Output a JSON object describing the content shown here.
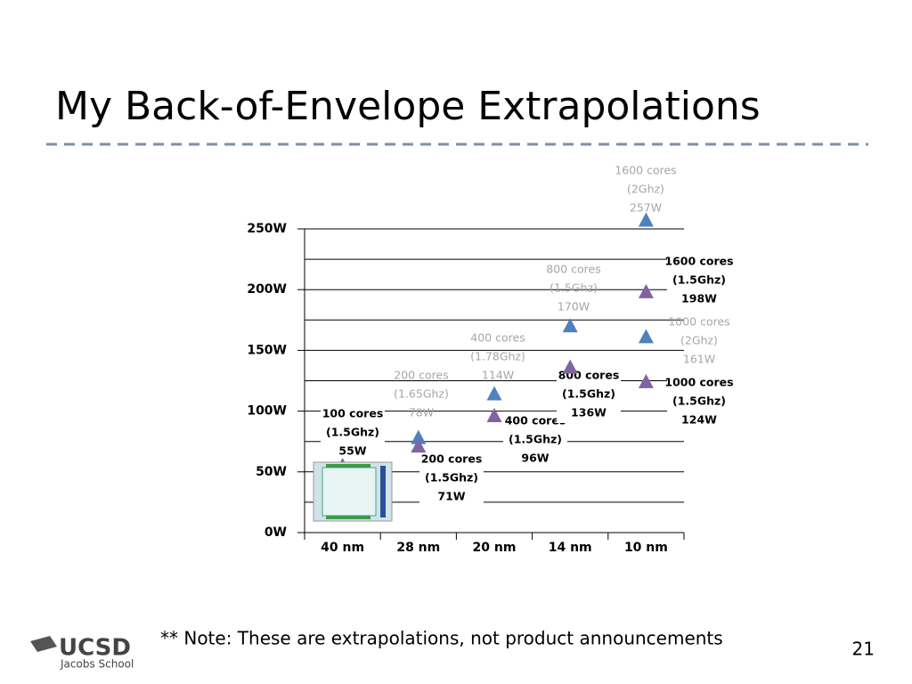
{
  "slide": {
    "title": "My Back-of-Envelope Extrapolations",
    "note": "** Note: These are extrapolations, not product announcements",
    "page_number": "21",
    "logo_text": "UCSD",
    "logo_subtext": "Jacobs School"
  },
  "chart_data": {
    "type": "scatter",
    "categories": [
      "40 nm",
      "28 nm",
      "20 nm",
      "14 nm",
      "10 nm"
    ],
    "ylim": [
      0,
      250
    ],
    "yticks": [
      {
        "value": 0,
        "label": "0W"
      },
      {
        "value": 50,
        "label": "50W"
      },
      {
        "value": 100,
        "label": "100W"
      },
      {
        "value": 150,
        "label": "150W"
      },
      {
        "value": 200,
        "label": "200W"
      },
      {
        "value": 250,
        "label": "250W"
      }
    ],
    "y_minor_ticks": [
      25,
      75,
      125,
      175,
      225
    ],
    "grid": true,
    "series": [
      {
        "color": "#4f81bd",
        "label_color": "#a6a6a6",
        "x": [
          "28 nm",
          "20 nm",
          "14 nm",
          "10 nm",
          "10 nm"
        ],
        "values": [
          78,
          114,
          170,
          257,
          161
        ],
        "value_labels": [
          [
            "200 cores",
            "(1.65Ghz)",
            "78W"
          ],
          [
            "400 cores",
            "(1.78Ghz)",
            "114W"
          ],
          [
            "800 cores",
            "(1.5Ghz)",
            "170W"
          ],
          [
            "1600 cores",
            "(2Ghz)",
            "257W"
          ],
          [
            "1000 cores",
            "(2Ghz)",
            "161W"
          ]
        ]
      },
      {
        "color": "#8064a2",
        "label_color": "#000000",
        "x": [
          "40 nm",
          "28 nm",
          "20 nm",
          "14 nm",
          "10 nm",
          "10 nm"
        ],
        "values": [
          55,
          71,
          96,
          136,
          198,
          124
        ],
        "value_labels": [
          [
            "100 cores",
            "(1.5Ghz)",
            "55W"
          ],
          [
            "200 cores",
            "(1.5Ghz)",
            "71W"
          ],
          [
            "400 cores",
            "(1.5Ghz)",
            "96W"
          ],
          [
            "800 cores",
            "(1.5Ghz)",
            "136W"
          ],
          [
            "1600 cores",
            "(1.5Ghz)",
            "198W"
          ],
          [
            "1000 cores",
            "(1.5Ghz)",
            "124W"
          ]
        ]
      }
    ]
  }
}
